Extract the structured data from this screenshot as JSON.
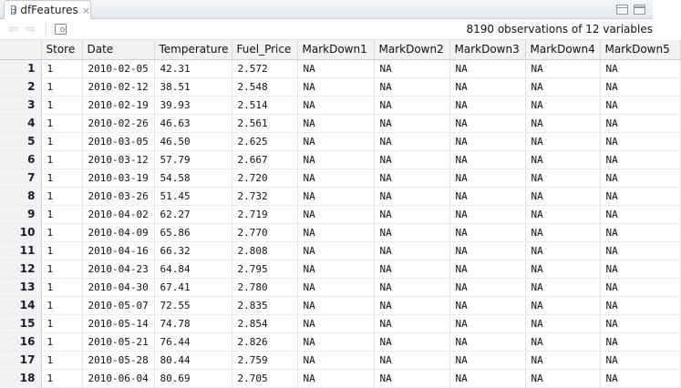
{
  "tab": {
    "title": "dfFeatures",
    "close_glyph": "×"
  },
  "toolbar": {
    "observations_text": "8190 observations of 12 variables"
  },
  "columns": [
    "Store",
    "Date",
    "Temperature",
    "Fuel_Price",
    "MarkDown1",
    "MarkDown2",
    "MarkDown3",
    "MarkDown4",
    "MarkDown5"
  ],
  "rows": [
    [
      "1",
      "1",
      "2010-02-05",
      "42.31",
      "2.572",
      "NA",
      "NA",
      "NA",
      "NA",
      "NA"
    ],
    [
      "2",
      "1",
      "2010-02-12",
      "38.51",
      "2.548",
      "NA",
      "NA",
      "NA",
      "NA",
      "NA"
    ],
    [
      "3",
      "1",
      "2010-02-19",
      "39.93",
      "2.514",
      "NA",
      "NA",
      "NA",
      "NA",
      "NA"
    ],
    [
      "4",
      "1",
      "2010-02-26",
      "46.63",
      "2.561",
      "NA",
      "NA",
      "NA",
      "NA",
      "NA"
    ],
    [
      "5",
      "1",
      "2010-03-05",
      "46.50",
      "2.625",
      "NA",
      "NA",
      "NA",
      "NA",
      "NA"
    ],
    [
      "6",
      "1",
      "2010-03-12",
      "57.79",
      "2.667",
      "NA",
      "NA",
      "NA",
      "NA",
      "NA"
    ],
    [
      "7",
      "1",
      "2010-03-19",
      "54.58",
      "2.720",
      "NA",
      "NA",
      "NA",
      "NA",
      "NA"
    ],
    [
      "8",
      "1",
      "2010-03-26",
      "51.45",
      "2.732",
      "NA",
      "NA",
      "NA",
      "NA",
      "NA"
    ],
    [
      "9",
      "1",
      "2010-04-02",
      "62.27",
      "2.719",
      "NA",
      "NA",
      "NA",
      "NA",
      "NA"
    ],
    [
      "10",
      "1",
      "2010-04-09",
      "65.86",
      "2.770",
      "NA",
      "NA",
      "NA",
      "NA",
      "NA"
    ],
    [
      "11",
      "1",
      "2010-04-16",
      "66.32",
      "2.808",
      "NA",
      "NA",
      "NA",
      "NA",
      "NA"
    ],
    [
      "12",
      "1",
      "2010-04-23",
      "64.84",
      "2.795",
      "NA",
      "NA",
      "NA",
      "NA",
      "NA"
    ],
    [
      "13",
      "1",
      "2010-04-30",
      "67.41",
      "2.780",
      "NA",
      "NA",
      "NA",
      "NA",
      "NA"
    ],
    [
      "14",
      "1",
      "2010-05-07",
      "72.55",
      "2.835",
      "NA",
      "NA",
      "NA",
      "NA",
      "NA"
    ],
    [
      "15",
      "1",
      "2010-05-14",
      "74.78",
      "2.854",
      "NA",
      "NA",
      "NA",
      "NA",
      "NA"
    ],
    [
      "16",
      "1",
      "2010-05-21",
      "76.44",
      "2.826",
      "NA",
      "NA",
      "NA",
      "NA",
      "NA"
    ],
    [
      "17",
      "1",
      "2010-05-28",
      "80.44",
      "2.759",
      "NA",
      "NA",
      "NA",
      "NA",
      "NA"
    ],
    [
      "18",
      "1",
      "2010-06-04",
      "80.69",
      "2.705",
      "NA",
      "NA",
      "NA",
      "NA",
      "NA"
    ]
  ],
  "icons": {
    "tab": "data-grid-icon",
    "back": "arrow-left-icon",
    "forward": "arrow-right-icon",
    "filter": "filter-icon",
    "minimize": "minimize-pane-icon",
    "maximize": "maximize-pane-icon"
  },
  "colors": {
    "header_bg": "#f0f2f4",
    "grid_line": "#e2e6ea",
    "tab_bar": "#e4e8ec"
  }
}
